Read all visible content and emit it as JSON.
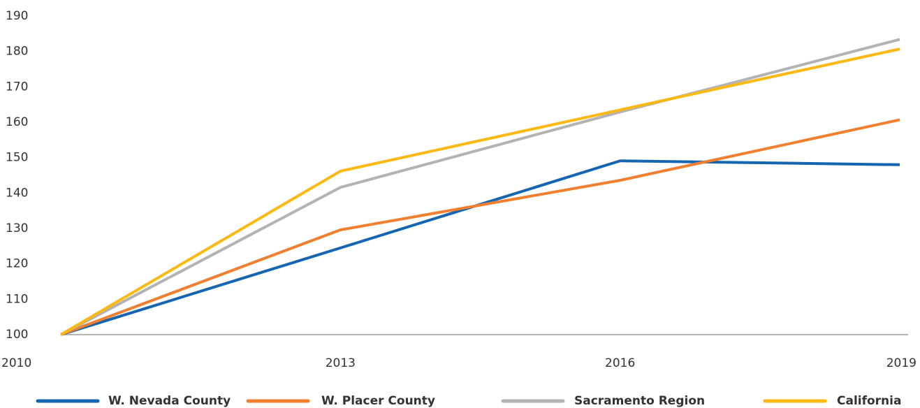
{
  "chart_data": {
    "type": "line",
    "categories": [
      "2010",
      "2013",
      "2016",
      "2019"
    ],
    "series": [
      {
        "name": "W. Nevada County",
        "color": "#1565b0",
        "values": [
          100,
          124.5,
          149.1,
          148.0
        ]
      },
      {
        "name": "W. Placer County",
        "color": "#f07f2f",
        "values": [
          100,
          129.6,
          143.6,
          160.7
        ]
      },
      {
        "name": "Sacramento Region",
        "color": "#b3b3b3",
        "values": [
          100,
          141.6,
          162.9,
          183.4
        ]
      },
      {
        "name": "California",
        "color": "#fdb913",
        "values": [
          100,
          146.2,
          163.5,
          180.7
        ]
      }
    ],
    "ylim": [
      100,
      190
    ],
    "yticks": [
      100,
      110,
      120,
      130,
      140,
      150,
      160,
      170,
      180,
      190
    ],
    "grid": false,
    "legend": "bottom"
  }
}
